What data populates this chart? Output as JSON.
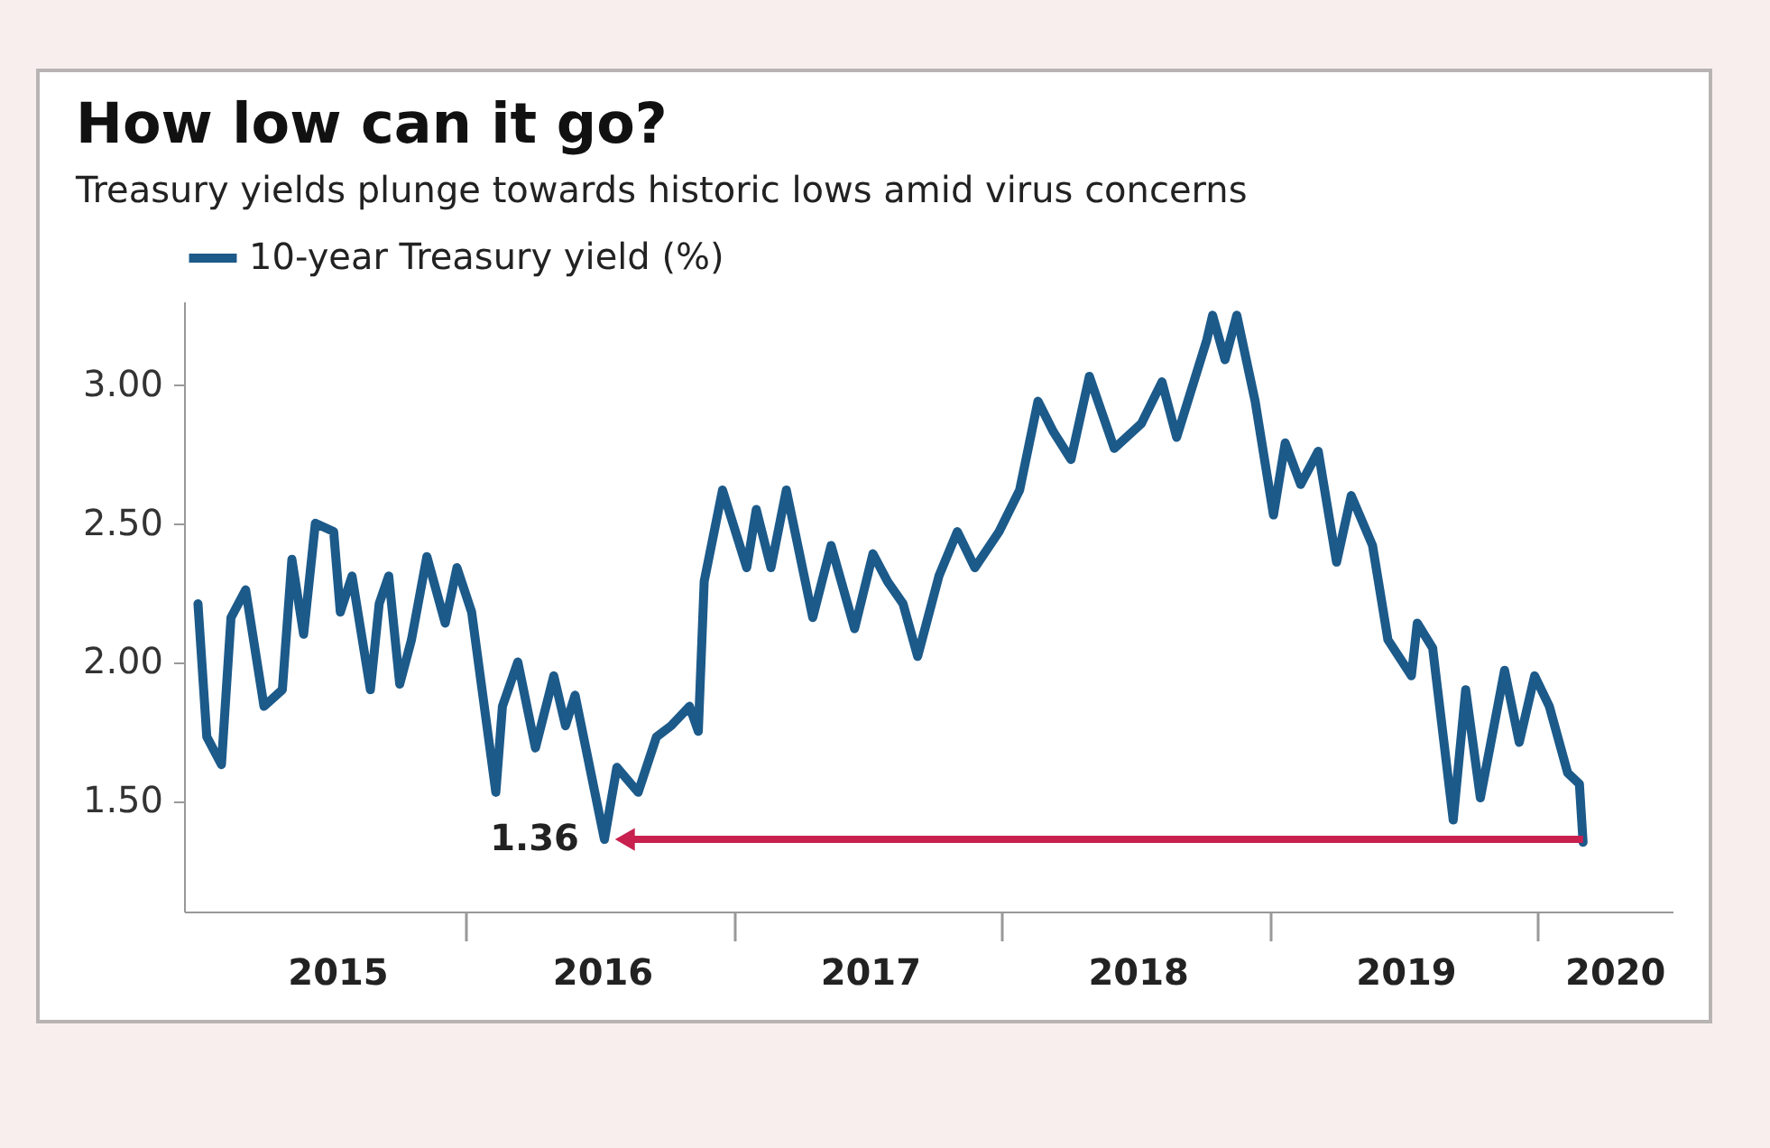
{
  "chart_data": {
    "type": "line",
    "title": "How low can it go?",
    "subtitle": "Treasury yields plunge towards historic lows amid virus concerns",
    "x": [
      "2015-01-01",
      "2015-01-13",
      "2015-02-02",
      "2015-02-15",
      "2015-03-07",
      "2015-04-01",
      "2015-04-26",
      "2015-05-09",
      "2015-05-25",
      "2015-06-10",
      "2015-07-05",
      "2015-07-14",
      "2015-07-30",
      "2015-08-24",
      "2015-09-05",
      "2015-09-18",
      "2015-10-03",
      "2015-10-19",
      "2015-11-09",
      "2015-12-04",
      "2015-12-20",
      "2016-01-09",
      "2016-02-11",
      "2016-02-20",
      "2016-03-12",
      "2016-04-05",
      "2016-04-30",
      "2016-05-16",
      "2016-05-29",
      "2016-07-08",
      "2016-07-25",
      "2016-08-23",
      "2016-09-17",
      "2016-10-07",
      "2016-11-01",
      "2016-11-13",
      "2016-11-21",
      "2016-12-16",
      "2017-01-18",
      "2017-01-31",
      "2017-02-20",
      "2017-03-13",
      "2017-04-18",
      "2017-05-13",
      "2017-06-14",
      "2017-07-09",
      "2017-07-29",
      "2017-08-19",
      "2017-09-08",
      "2017-10-07",
      "2017-11-01",
      "2017-11-25",
      "2017-12-28",
      "2018-01-25",
      "2018-02-19",
      "2018-03-12",
      "2018-04-05",
      "2018-04-30",
      "2018-06-03",
      "2018-07-10",
      "2018-08-07",
      "2018-08-27",
      "2018-10-07",
      "2018-10-15",
      "2018-11-01",
      "2018-11-17",
      "2018-12-12",
      "2019-01-06",
      "2019-01-22",
      "2019-02-12",
      "2019-03-08",
      "2019-04-02",
      "2019-04-22",
      "2019-05-21",
      "2019-06-11",
      "2019-07-13",
      "2019-07-21",
      "2019-08-11",
      "2019-09-08",
      "2019-09-25",
      "2019-10-15",
      "2019-11-17",
      "2019-12-07",
      "2019-12-28",
      "2020-01-17",
      "2020-02-11",
      "2020-02-27",
      "2020-03-03"
    ],
    "series": [
      {
        "name": "10-year Treasury yield (%)",
        "color": "#1c5a8a",
        "values": [
          2.21,
          1.73,
          1.63,
          2.16,
          2.26,
          1.84,
          1.9,
          2.37,
          2.1,
          2.5,
          2.47,
          2.18,
          2.31,
          1.9,
          2.21,
          2.31,
          1.92,
          2.08,
          2.38,
          2.14,
          2.34,
          2.18,
          1.53,
          1.84,
          2.0,
          1.69,
          1.95,
          1.77,
          1.88,
          1.36,
          1.62,
          1.53,
          1.73,
          1.77,
          1.84,
          1.75,
          2.29,
          2.62,
          2.34,
          2.55,
          2.34,
          2.62,
          2.16,
          2.42,
          2.12,
          2.39,
          2.29,
          2.21,
          2.02,
          2.31,
          2.47,
          2.34,
          2.47,
          2.62,
          2.94,
          2.83,
          2.73,
          3.03,
          2.77,
          2.86,
          3.01,
          2.81,
          3.16,
          3.25,
          3.09,
          3.25,
          2.94,
          2.53,
          2.79,
          2.64,
          2.76,
          2.36,
          2.6,
          2.42,
          2.08,
          1.95,
          2.14,
          2.05,
          1.43,
          1.9,
          1.51,
          1.97,
          1.71,
          1.95,
          1.84,
          1.6,
          1.56,
          1.35
        ]
      }
    ],
    "xlim": [
      "2014-12-13",
      "2020-07-03"
    ],
    "xticks": [
      {
        "value": "2015-07-10",
        "label": "2015"
      },
      {
        "value": "2016-01-01",
        "label": null
      },
      {
        "value": "2016-07-05",
        "label": "2016"
      },
      {
        "value": "2017-01-01",
        "label": null
      },
      {
        "value": "2017-07-05",
        "label": "2017"
      },
      {
        "value": "2018-01-01",
        "label": null
      },
      {
        "value": "2018-07-05",
        "label": "2018"
      },
      {
        "value": "2019-01-01",
        "label": null
      },
      {
        "value": "2019-07-05",
        "label": "2019"
      },
      {
        "value": "2020-01-01",
        "label": null
      },
      {
        "value": "2020-04-15",
        "label": "2020"
      }
    ],
    "ylim": [
      1.1,
      3.3
    ],
    "yticks": [
      {
        "value": 1.5,
        "label": "1.50"
      },
      {
        "value": 2,
        "label": "2.00"
      },
      {
        "value": 2.5,
        "label": "2.50"
      },
      {
        "value": 3,
        "label": "3.00"
      }
    ],
    "annotations": [
      {
        "text": "1.36",
        "x": "2016-07-08",
        "y": 1.36
      }
    ],
    "grid": false,
    "legend": "top left",
    "line_style": "solid",
    "marker": "none"
  }
}
